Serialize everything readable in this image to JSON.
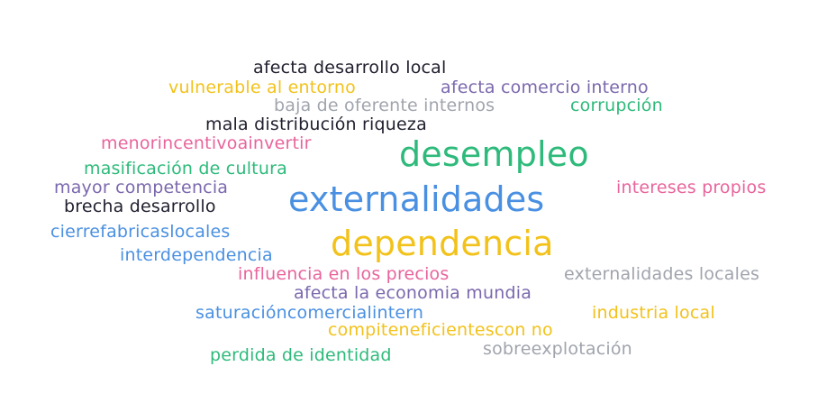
{
  "word_cloud": {
    "words": [
      {
        "text": "afecta desarrollo local",
        "color": "#1f1f2e",
        "size": "small"
      },
      {
        "text": "vulnerable al entorno",
        "color": "#f2c21b",
        "size": "small"
      },
      {
        "text": "afecta comercio interno",
        "color": "#7b68ad",
        "size": "small"
      },
      {
        "text": "baja de oferente internos",
        "color": "#a0a4ad",
        "size": "small"
      },
      {
        "text": "corrupción",
        "color": "#2dba7a",
        "size": "small"
      },
      {
        "text": "mala distribución riqueza",
        "color": "#1f1f2e",
        "size": "small"
      },
      {
        "text": "menorincentivoainvertir",
        "color": "#e8649c",
        "size": "small"
      },
      {
        "text": "desempleo",
        "color": "#2dba7a",
        "size": "large"
      },
      {
        "text": "masificación de cultura",
        "color": "#2dba7a",
        "size": "small"
      },
      {
        "text": "mayor competencia",
        "color": "#7b68ad",
        "size": "small"
      },
      {
        "text": "intereses propios",
        "color": "#e8649c",
        "size": "small"
      },
      {
        "text": "externalidades",
        "color": "#4a90e2",
        "size": "large"
      },
      {
        "text": "brecha desarrollo",
        "color": "#1f1f2e",
        "size": "small"
      },
      {
        "text": "cierrefabricaslocales",
        "color": "#4a90e2",
        "size": "small"
      },
      {
        "text": "dependencia",
        "color": "#f2c21b",
        "size": "large"
      },
      {
        "text": "interdependencia",
        "color": "#4a90e2",
        "size": "small"
      },
      {
        "text": "influencia en los precios",
        "color": "#e8649c",
        "size": "small"
      },
      {
        "text": "externalidades locales",
        "color": "#a0a4ad",
        "size": "small"
      },
      {
        "text": "afecta la economia mundia",
        "color": "#7b68ad",
        "size": "small"
      },
      {
        "text": "saturacióncomercialintern",
        "color": "#4a90e2",
        "size": "small"
      },
      {
        "text": "industria local",
        "color": "#f2c21b",
        "size": "small"
      },
      {
        "text": "compiteneficientescon no",
        "color": "#f2c21b",
        "size": "small"
      },
      {
        "text": "sobreexplotación",
        "color": "#a0a4ad",
        "size": "small"
      },
      {
        "text": "perdida de identidad",
        "color": "#2dba7a",
        "size": "small"
      }
    ]
  }
}
